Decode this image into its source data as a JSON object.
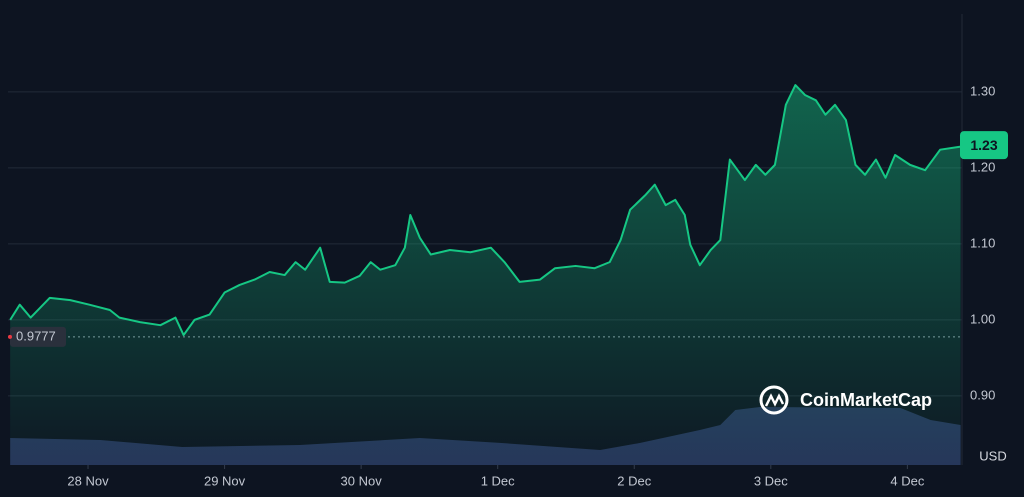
{
  "chart_data": {
    "type": "line",
    "x": [
      -0.57,
      -0.5,
      -0.42,
      -0.28,
      -0.13,
      0.01,
      0.16,
      0.23,
      0.38,
      0.53,
      0.64,
      0.7,
      0.78,
      0.89,
      1.0,
      1.11,
      1.22,
      1.33,
      1.44,
      1.52,
      1.59,
      1.7,
      1.77,
      1.88,
      1.99,
      2.07,
      2.14,
      2.25,
      2.32,
      2.36,
      2.43,
      2.51,
      2.65,
      2.8,
      2.95,
      3.05,
      3.16,
      3.31,
      3.42,
      3.57,
      3.71,
      3.82,
      3.9,
      3.97,
      4.08,
      4.15,
      4.23,
      4.3,
      4.37,
      4.41,
      4.48,
      4.56,
      4.63,
      4.7,
      4.81,
      4.89,
      4.96,
      5.03,
      5.11,
      5.18,
      5.25,
      5.33,
      5.4,
      5.47,
      5.55,
      5.62,
      5.69,
      5.77,
      5.84,
      5.91,
      6.02,
      6.13,
      6.24,
      6.39
    ],
    "series": [
      {
        "color": "#16c784",
        "values": [
          1.0,
          1.02,
          1.003,
          1.029,
          1.026,
          1.02,
          1.013,
          1.003,
          0.997,
          0.993,
          1.003,
          0.98,
          1.0,
          1.007,
          1.036,
          1.046,
          1.053,
          1.063,
          1.059,
          1.076,
          1.066,
          1.095,
          1.05,
          1.049,
          1.058,
          1.076,
          1.066,
          1.072,
          1.095,
          1.138,
          1.108,
          1.086,
          1.092,
          1.089,
          1.095,
          1.076,
          1.05,
          1.053,
          1.068,
          1.071,
          1.068,
          1.076,
          1.105,
          1.145,
          1.164,
          1.178,
          1.151,
          1.158,
          1.138,
          1.099,
          1.072,
          1.092,
          1.105,
          1.211,
          1.184,
          1.204,
          1.191,
          1.204,
          1.283,
          1.309,
          1.296,
          1.289,
          1.27,
          1.283,
          1.263,
          1.204,
          1.191,
          1.211,
          1.187,
          1.217,
          1.204,
          1.197,
          1.224,
          1.228
        ]
      }
    ],
    "volume": {
      "color": "#2c3a63",
      "x": [
        -0.57,
        0.09,
        0.69,
        1.55,
        2.43,
        3.03,
        3.75,
        4.04,
        4.48,
        4.63,
        4.74,
        4.92,
        5.95,
        6.17,
        6.39
      ],
      "values": [
        27,
        25,
        18,
        20,
        27,
        22,
        15,
        22,
        35,
        40,
        55,
        58,
        57,
        45,
        40
      ],
      "ylim": [
        0,
        100
      ]
    },
    "xlim": [
      -0.586,
      6.4
    ],
    "xticks": [
      {
        "value": 0,
        "label": "28 Nov"
      },
      {
        "value": 1,
        "label": "29 Nov"
      },
      {
        "value": 2,
        "label": "30 Nov"
      },
      {
        "value": 3,
        "label": "1 Dec"
      },
      {
        "value": 4,
        "label": "2 Dec"
      },
      {
        "value": 5,
        "label": "3 Dec"
      },
      {
        "value": 6,
        "label": "4 Dec"
      }
    ],
    "ylim": [
      0.809,
      1.421
    ],
    "yticks": [
      {
        "value": 0.9,
        "label": "0.90"
      },
      {
        "value": 1.0,
        "label": "1.00"
      },
      {
        "value": 1.1,
        "label": "1.10"
      },
      {
        "value": 1.2,
        "label": "1.20"
      },
      {
        "value": 1.3,
        "label": "1.30"
      }
    ],
    "grid": true,
    "current_price": 1.23,
    "open_price": 0.9777,
    "currency": "USD",
    "watermark": "CoinMarketCap"
  }
}
